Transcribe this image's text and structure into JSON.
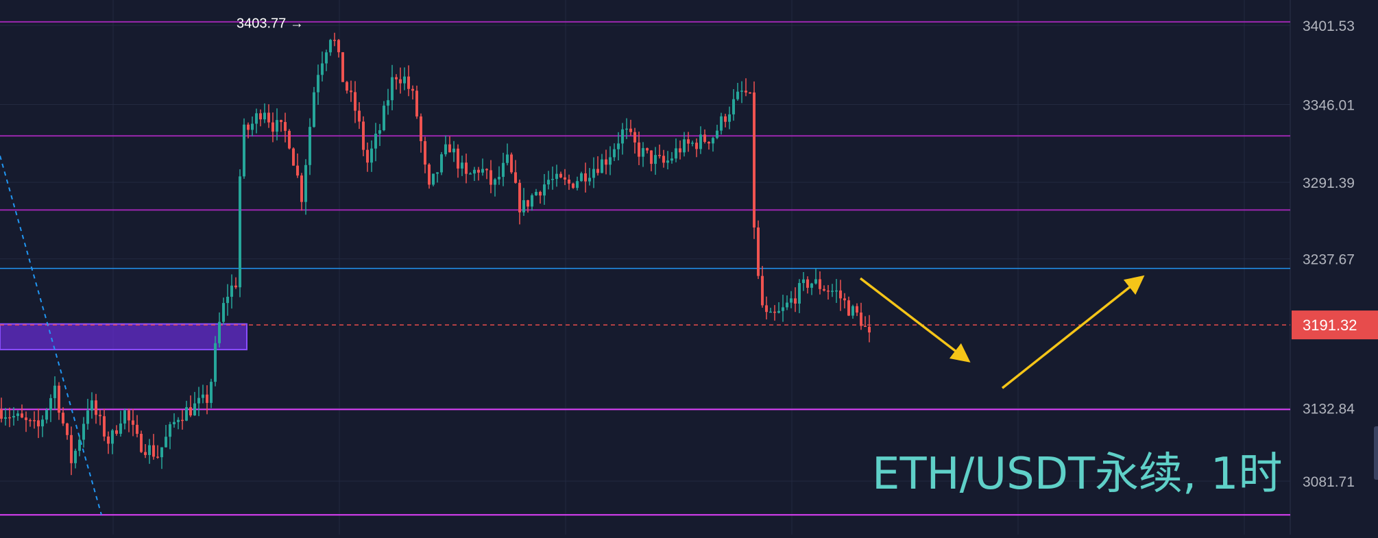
{
  "symbol_label": "ETH/USDT永续, 1时",
  "colors": {
    "background": "#161b2e",
    "grid": "#232a40",
    "up_candle": "#26a69a",
    "down_candle": "#ef5350",
    "resistance_line": "#9c27b0",
    "support_line": "#e040fb",
    "blue_line": "#2196f3",
    "zone_fill": "#6a2cd8",
    "arrow": "#f5c518",
    "axis_text": "#b2b5be",
    "current_price_bg": "#e74c4c"
  },
  "chart_data": {
    "type": "candlestick",
    "title": "",
    "xlabel": "",
    "ylabel": "",
    "y_axis_side": "right",
    "y_tick_labels": [
      "3401.53",
      "3346.01",
      "3291.39",
      "3237.67",
      "3132.84",
      "3081.71"
    ],
    "ylim": [
      3030,
      3430
    ],
    "grid": true,
    "high_marker": {
      "label": "3403.77 →",
      "value": 3403.77
    },
    "current_price": {
      "label": "3191.32",
      "value": 3191.32
    },
    "horizontal_lines": [
      {
        "value": 3404,
        "role": "resistance"
      },
      {
        "value": 3324,
        "role": "resistance"
      },
      {
        "value": 3272,
        "role": "resistance"
      },
      {
        "value": 3231,
        "role": "support"
      },
      {
        "value": 3132,
        "role": "support"
      },
      {
        "value": 3058,
        "role": "support"
      }
    ],
    "zones": [
      {
        "from": 3174,
        "to": 3192
      }
    ],
    "trend_line": {
      "points": [
        [
          0,
          3310
        ],
        [
          148,
          3058
        ]
      ],
      "style": "dashed"
    },
    "arrows": [
      {
        "from": [
          1255,
          3224
        ],
        "to": [
          1410,
          3167
        ],
        "direction": "down"
      },
      {
        "from": [
          1462,
          3147
        ],
        "to": [
          1664,
          3224
        ],
        "direction": "up"
      }
    ],
    "series_path": [
      [
        0,
        3132
      ],
      [
        55,
        3118
      ],
      [
        80,
        3148
      ],
      [
        105,
        3094
      ],
      [
        130,
        3138
      ],
      [
        160,
        3108
      ],
      [
        180,
        3132
      ],
      [
        200,
        3110
      ],
      [
        230,
        3100
      ],
      [
        260,
        3128
      ],
      [
        300,
        3138
      ],
      [
        305,
        3142
      ],
      [
        318,
        3188
      ],
      [
        330,
        3212
      ],
      [
        345,
        3222
      ],
      [
        352,
        3325
      ],
      [
        365,
        3330
      ],
      [
        385,
        3345
      ],
      [
        395,
        3333
      ],
      [
        420,
        3325
      ],
      [
        440,
        3282
      ],
      [
        460,
        3364
      ],
      [
        470,
        3379
      ],
      [
        484,
        3398
      ],
      [
        500,
        3364
      ],
      [
        520,
        3340
      ],
      [
        535,
        3304
      ],
      [
        555,
        3330
      ],
      [
        575,
        3368
      ],
      [
        590,
        3364
      ],
      [
        605,
        3348
      ],
      [
        625,
        3284
      ],
      [
        640,
        3302
      ],
      [
        655,
        3318
      ],
      [
        680,
        3294
      ],
      [
        700,
        3302
      ],
      [
        720,
        3288
      ],
      [
        740,
        3306
      ],
      [
        760,
        3272
      ],
      [
        780,
        3284
      ],
      [
        800,
        3293
      ],
      [
        830,
        3290
      ],
      [
        860,
        3300
      ],
      [
        885,
        3308
      ],
      [
        910,
        3328
      ],
      [
        930,
        3314
      ],
      [
        950,
        3308
      ],
      [
        970,
        3304
      ],
      [
        990,
        3315
      ],
      [
        1020,
        3320
      ],
      [
        1040,
        3324
      ],
      [
        1060,
        3340
      ],
      [
        1075,
        3350
      ],
      [
        1085,
        3356
      ],
      [
        1097,
        3346
      ],
      [
        1100,
        3262
      ],
      [
        1108,
        3210
      ],
      [
        1120,
        3194
      ],
      [
        1140,
        3200
      ],
      [
        1160,
        3212
      ],
      [
        1180,
        3222
      ],
      [
        1200,
        3218
      ],
      [
        1220,
        3214
      ],
      [
        1240,
        3202
      ],
      [
        1255,
        3196
      ],
      [
        1270,
        3180
      ]
    ]
  }
}
